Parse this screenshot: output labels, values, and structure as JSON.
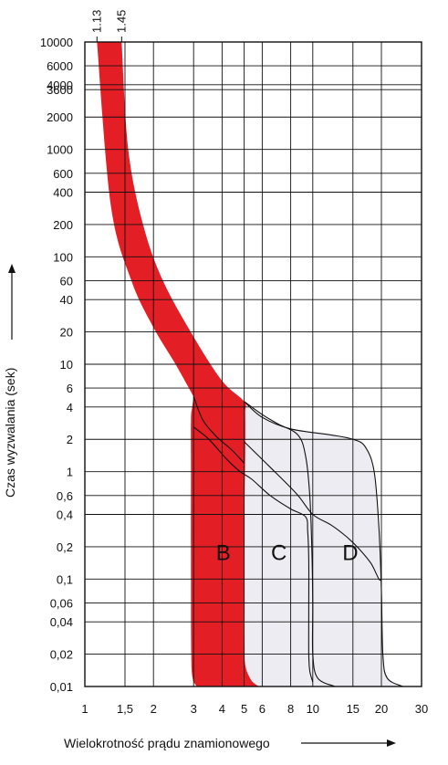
{
  "chart_data": {
    "type": "area",
    "title": "",
    "xlabel": "Wielokrotność prądu znamionowego",
    "ylabel": "Czas wyzwalania (sek)",
    "x_scale": "log",
    "y_scale": "log",
    "xlim": [
      1,
      30
    ],
    "ylim": [
      0.01,
      10000
    ],
    "grid": true,
    "x_tick_labels": [
      "1",
      "1,5",
      "2",
      "3",
      "4",
      "5",
      "6",
      "8",
      "10",
      "15",
      "20",
      "30"
    ],
    "x_tick_values": [
      1,
      1.5,
      2,
      3,
      4,
      5,
      6,
      8,
      10,
      15,
      20,
      30
    ],
    "y_tick_labels": [
      "10000",
      "6000",
      "4000",
      "3600",
      "2000",
      "1000",
      "600",
      "400",
      "200",
      "100",
      "60",
      "40",
      "20",
      "10",
      "6",
      "4",
      "2",
      "1",
      "0,6",
      "0,4",
      "0,2",
      "0,1",
      "0,06",
      "0,04",
      "0,02",
      "0,01"
    ],
    "y_tick_values": [
      10000,
      6000,
      4000,
      3600,
      2000,
      1000,
      600,
      400,
      200,
      100,
      60,
      40,
      20,
      10,
      6,
      4,
      2,
      1,
      0.6,
      0.4,
      0.2,
      0.1,
      0.06,
      0.04,
      0.02,
      0.01
    ],
    "top_markers": [
      "1.13",
      "1.45"
    ],
    "top_marker_values": [
      1.13,
      1.45
    ],
    "zones": [
      {
        "name": "B",
        "color": "#e31e24",
        "magnetic_range": [
          3,
          5
        ]
      },
      {
        "name": "C",
        "color": "#ececf2",
        "magnetic_range": [
          5,
          10
        ]
      },
      {
        "name": "D",
        "color": "#ececf2",
        "magnetic_range": [
          10,
          20
        ]
      }
    ],
    "thermal_band": {
      "lower": [
        [
          1.13,
          10000
        ],
        [
          1.3,
          300
        ],
        [
          1.6,
          60
        ],
        [
          2,
          22
        ],
        [
          2.5,
          10
        ],
        [
          3,
          5
        ]
      ],
      "upper": [
        [
          1.45,
          10000
        ],
        [
          1.55,
          1000
        ],
        [
          1.8,
          200
        ],
        [
          2.2,
          60
        ],
        [
          3,
          18
        ],
        [
          4,
          7
        ],
        [
          5,
          4.5
        ]
      ]
    }
  }
}
